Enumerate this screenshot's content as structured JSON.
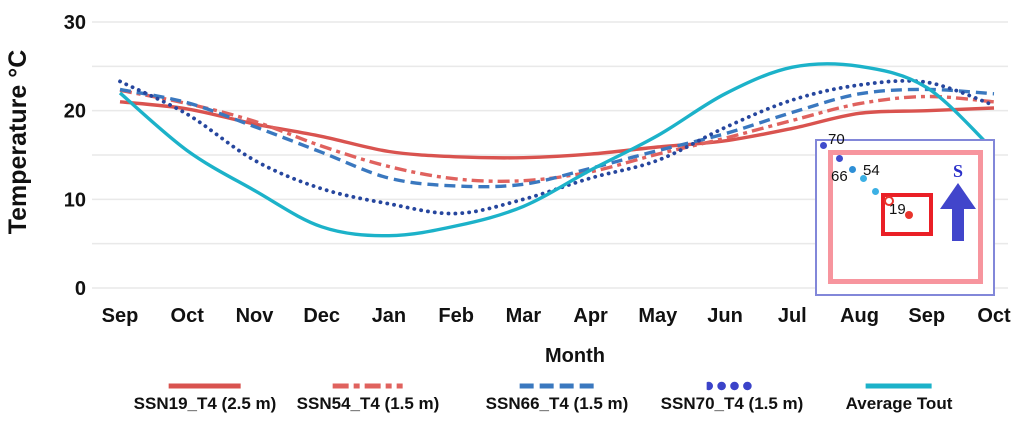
{
  "chart_data": {
    "type": "line",
    "title": "",
    "xlabel": "Month",
    "ylabel": "Temperature  °C",
    "ylim": [
      0,
      30
    ],
    "yticks": [
      30,
      20,
      10,
      0
    ],
    "gridline_values": [
      0,
      5,
      10,
      15,
      20,
      25,
      30
    ],
    "grid_color": "#e9e9e9",
    "legend_position": "bottom",
    "categories": [
      "Sep",
      "Oct",
      "Nov",
      "Dec",
      "Jan",
      "Feb",
      "Mar",
      "Apr",
      "May",
      "Jun",
      "Jul",
      "Aug",
      "Sep",
      "Oct"
    ],
    "series": [
      {
        "name": "SSN19_T4 (2.5 m)",
        "color": "#d9534f",
        "style": "solid",
        "values": [
          21.0,
          20.2,
          18.5,
          17.1,
          15.4,
          14.8,
          14.7,
          15.1,
          15.9,
          16.6,
          18.0,
          19.7,
          20.0,
          20.3
        ]
      },
      {
        "name": "SSN54_T4 (1.5 m)",
        "color": "#e0625e",
        "style": "dashdot",
        "values": [
          22.3,
          20.8,
          18.8,
          16.0,
          13.7,
          12.3,
          12.1,
          13.1,
          15.1,
          16.9,
          18.9,
          20.8,
          21.6,
          21.0
        ]
      },
      {
        "name": "SSN66_T4 (1.5 m)",
        "color": "#3a78bf",
        "style": "dashed",
        "values": [
          22.4,
          20.9,
          18.2,
          15.3,
          12.4,
          11.5,
          11.7,
          13.5,
          15.5,
          17.4,
          19.8,
          21.9,
          22.4,
          21.9
        ]
      },
      {
        "name": "SSN70_T4 (1.5 m)",
        "color": "#26469e",
        "legend_color": "#3b43c9",
        "style": "dotted",
        "values": [
          23.3,
          19.6,
          14.4,
          11.2,
          9.5,
          8.4,
          10.0,
          12.4,
          14.4,
          18.1,
          21.2,
          22.9,
          23.2,
          20.6
        ]
      },
      {
        "name": "Average Tout",
        "color": "#1cb2c9",
        "style": "solid",
        "values": [
          22.0,
          15.5,
          11.0,
          6.9,
          5.9,
          7.0,
          9.2,
          13.3,
          17.2,
          21.9,
          24.9,
          25.0,
          22.6,
          15.5
        ]
      }
    ]
  },
  "inset": {
    "compass_label": "S",
    "sensors": [
      {
        "label": "70"
      },
      {
        "label": "66"
      },
      {
        "label": "54"
      },
      {
        "label": "19"
      }
    ],
    "colors": {
      "outer_border": "#8287d9",
      "frame_pink": "#f7959e",
      "highlight_box_red": "#ea1f26",
      "dot_royal_blue": "#3f4ccc",
      "dot_medium_blue": "#2e8fd6",
      "dot_light_blue": "#3cb0e4",
      "dot_red": "#e8342c",
      "arrow_blue": "#4145cb"
    }
  }
}
